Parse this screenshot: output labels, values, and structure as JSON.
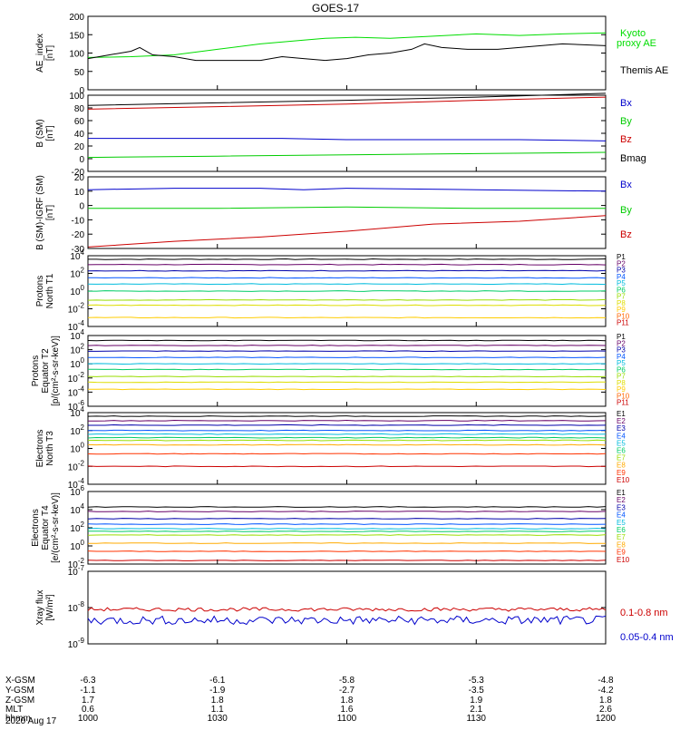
{
  "title": "GOES-17",
  "date_label": "2020 Aug 17",
  "chart_data": [
    {
      "type": "line",
      "panel": "ae",
      "ylabel": [
        "AE_index",
        "[nT]"
      ],
      "ylim": [
        0,
        200
      ],
      "yticks": [
        0,
        50,
        100,
        150,
        200
      ],
      "log": false,
      "series": [
        {
          "name": "Kyoto",
          "name2": "proxy AE",
          "color": "#00dd00",
          "points": [
            [
              0,
              88
            ],
            [
              10,
              90
            ],
            [
              20,
              95
            ],
            [
              30,
              110
            ],
            [
              40,
              125
            ],
            [
              50,
              135
            ],
            [
              55,
              140
            ],
            [
              62,
              143
            ],
            [
              70,
              140
            ],
            [
              80,
              146
            ],
            [
              90,
              152
            ],
            [
              100,
              148
            ],
            [
              110,
              152
            ],
            [
              120,
              155
            ]
          ]
        },
        {
          "name": "Themis AE",
          "color": "#000000",
          "points": [
            [
              0,
              85
            ],
            [
              5,
              95
            ],
            [
              10,
              105
            ],
            [
              12,
              115
            ],
            [
              15,
              95
            ],
            [
              20,
              90
            ],
            [
              25,
              80
            ],
            [
              30,
              80
            ],
            [
              35,
              80
            ],
            [
              40,
              80
            ],
            [
              45,
              90
            ],
            [
              50,
              85
            ],
            [
              55,
              80
            ],
            [
              60,
              85
            ],
            [
              65,
              95
            ],
            [
              70,
              100
            ],
            [
              75,
              110
            ],
            [
              78,
              125
            ],
            [
              82,
              115
            ],
            [
              88,
              110
            ],
            [
              95,
              110
            ],
            [
              100,
              115
            ],
            [
              105,
              120
            ],
            [
              110,
              125
            ],
            [
              120,
              120
            ]
          ]
        }
      ],
      "legend": [
        {
          "text": "Kyoto",
          "color": "#00dd00"
        },
        {
          "text": "proxy AE",
          "color": "#00dd00"
        },
        {
          "text": "Themis AE",
          "color": "#000000"
        }
      ]
    },
    {
      "type": "line",
      "panel": "b_sm",
      "ylabel": [
        "B (SM)",
        "[nT]"
      ],
      "ylim": [
        -20,
        100
      ],
      "yticks": [
        -20,
        0,
        20,
        40,
        60,
        80,
        100
      ],
      "log": false,
      "series": [
        {
          "name": "Bx",
          "color": "#0000cc",
          "points": [
            [
              0,
              32
            ],
            [
              45,
              32
            ],
            [
              60,
              30
            ],
            [
              100,
              30
            ],
            [
              120,
              28
            ]
          ]
        },
        {
          "name": "By",
          "color": "#00cc00",
          "points": [
            [
              0,
              2
            ],
            [
              30,
              4
            ],
            [
              60,
              6
            ],
            [
              90,
              8
            ],
            [
              120,
              10
            ]
          ]
        },
        {
          "name": "Bz",
          "color": "#cc0000",
          "points": [
            [
              0,
              78
            ],
            [
              30,
              82
            ],
            [
              60,
              86
            ],
            [
              90,
              92
            ],
            [
              120,
              97
            ]
          ]
        },
        {
          "name": "Bmag",
          "color": "#000000",
          "points": [
            [
              0,
              84
            ],
            [
              30,
              88
            ],
            [
              60,
              92
            ],
            [
              90,
              97
            ],
            [
              120,
              103
            ]
          ]
        }
      ],
      "legend": [
        {
          "text": "Bx",
          "color": "#0000cc"
        },
        {
          "text": "By",
          "color": "#00cc00"
        },
        {
          "text": "Bz",
          "color": "#cc0000"
        },
        {
          "text": "Bmag",
          "color": "#000000"
        }
      ]
    },
    {
      "type": "line",
      "panel": "b_igrf",
      "ylabel": [
        "B (SM)-IGRF (SM)",
        "[nT]"
      ],
      "ylim": [
        -30,
        20
      ],
      "yticks": [
        -30,
        -20,
        -10,
        0,
        10,
        20
      ],
      "log": false,
      "series": [
        {
          "name": "Bx",
          "color": "#0000cc",
          "points": [
            [
              0,
              11
            ],
            [
              20,
              12
            ],
            [
              40,
              12
            ],
            [
              50,
              11
            ],
            [
              60,
              12
            ],
            [
              90,
              11
            ],
            [
              120,
              10
            ]
          ]
        },
        {
          "name": "By",
          "color": "#00cc00",
          "points": [
            [
              0,
              -2
            ],
            [
              30,
              -2
            ],
            [
              60,
              -1
            ],
            [
              90,
              -2
            ],
            [
              120,
              -2
            ]
          ]
        },
        {
          "name": "Bz",
          "color": "#cc0000",
          "points": [
            [
              0,
              -29
            ],
            [
              20,
              -25
            ],
            [
              40,
              -22
            ],
            [
              60,
              -18
            ],
            [
              80,
              -13
            ],
            [
              100,
              -11
            ],
            [
              120,
              -7
            ]
          ]
        }
      ],
      "legend": [
        {
          "text": "Bx",
          "color": "#0000cc"
        },
        {
          "text": "By",
          "color": "#00cc00"
        },
        {
          "text": "Bz",
          "color": "#cc0000"
        }
      ]
    },
    {
      "type": "line",
      "panel": "protons_t1",
      "ylabel": [
        "Protons",
        "North T1"
      ],
      "log": true,
      "ylim_exp": [
        -4,
        4
      ],
      "yticks_exp": [
        -4,
        -2,
        0,
        2,
        4
      ],
      "series": [
        {
          "name": "P1",
          "color": "#000000",
          "levels": [
            3.6
          ]
        },
        {
          "name": "P2",
          "color": "#660066",
          "levels": [
            3.0
          ]
        },
        {
          "name": "P3",
          "color": "#0000aa",
          "levels": [
            2.3
          ]
        },
        {
          "name": "P4",
          "color": "#0055ff",
          "levels": [
            1.5
          ]
        },
        {
          "name": "P5",
          "color": "#00bbdd",
          "levels": [
            0.8
          ]
        },
        {
          "name": "P6",
          "color": "#00cc66",
          "levels": [
            0.0
          ]
        },
        {
          "name": "P7",
          "color": "#99dd00",
          "levels": [
            -1.0
          ]
        },
        {
          "name": "P8",
          "color": "#dddd00",
          "levels": [
            -1.6
          ]
        },
        {
          "name": "P9",
          "color": "#ffcc00",
          "levels": [
            -3.0
          ]
        },
        {
          "name": "P10",
          "color": "#ff6600",
          "levels": []
        },
        {
          "name": "P11",
          "color": "#cc0000",
          "levels": []
        }
      ]
    },
    {
      "type": "line",
      "panel": "protons_t2",
      "ylabel": [
        "Protons",
        "Equator T2",
        "[p/(cm²-s-sr-keV)]"
      ],
      "log": true,
      "ylim_exp": [
        -6,
        4
      ],
      "yticks_exp": [
        -6,
        -4,
        -2,
        0,
        2,
        4
      ],
      "series": [
        {
          "name": "P1",
          "color": "#000000",
          "levels": [
            3.3
          ]
        },
        {
          "name": "P2",
          "color": "#660066",
          "levels": [
            2.6
          ]
        },
        {
          "name": "P3",
          "color": "#0000aa",
          "levels": [
            1.8
          ]
        },
        {
          "name": "P4",
          "color": "#0055ff",
          "levels": [
            0.9
          ]
        },
        {
          "name": "P5",
          "color": "#00bbdd",
          "levels": [
            0.0
          ]
        },
        {
          "name": "P6",
          "color": "#00cc66",
          "levels": [
            -0.8
          ]
        },
        {
          "name": "P7",
          "color": "#99dd00",
          "levels": [
            -1.8
          ]
        },
        {
          "name": "P8",
          "color": "#dddd00",
          "levels": [
            -2.6
          ]
        },
        {
          "name": "P9",
          "color": "#ffcc00",
          "levels": [
            -3.6
          ]
        },
        {
          "name": "P10",
          "color": "#ff6600",
          "levels": []
        },
        {
          "name": "P11",
          "color": "#cc0000",
          "levels": []
        }
      ]
    },
    {
      "type": "line",
      "panel": "electrons_t3",
      "ylabel": [
        "Electrons",
        "North T3"
      ],
      "log": true,
      "ylim_exp": [
        -4,
        4
      ],
      "yticks_exp": [
        -4,
        -2,
        0,
        2,
        4
      ],
      "series": [
        {
          "name": "E1",
          "color": "#000000",
          "levels": [
            3.6
          ]
        },
        {
          "name": "E2",
          "color": "#660066",
          "levels": [
            3.1
          ]
        },
        {
          "name": "E3",
          "color": "#0000aa",
          "levels": [
            2.6
          ]
        },
        {
          "name": "E4",
          "color": "#0055ff",
          "levels": [
            2.0
          ]
        },
        {
          "name": "E5",
          "color": "#00bbdd",
          "levels": [
            1.6
          ]
        },
        {
          "name": "E6",
          "color": "#00cc66",
          "levels": [
            1.2
          ]
        },
        {
          "name": "E7",
          "color": "#99dd00",
          "levels": [
            0.9
          ]
        },
        {
          "name": "E8",
          "color": "#ffaa00",
          "levels": [
            0.4
          ]
        },
        {
          "name": "E9",
          "color": "#ff3300",
          "levels": [
            -0.6
          ]
        },
        {
          "name": "E10",
          "color": "#cc0000",
          "levels": [
            -2.0
          ]
        }
      ]
    },
    {
      "type": "line",
      "panel": "electrons_t4",
      "ylabel": [
        "Electrons",
        "Equator T4",
        "[e/(cm²-s-sr-keV)]"
      ],
      "log": true,
      "ylim_exp": [
        -2,
        6
      ],
      "yticks_exp": [
        -2,
        0,
        2,
        4,
        6
      ],
      "series": [
        {
          "name": "E1",
          "color": "#000000",
          "levels": [
            4.3
          ]
        },
        {
          "name": "E2",
          "color": "#660066",
          "levels": [
            3.8
          ]
        },
        {
          "name": "E3",
          "color": "#0000aa",
          "levels": [
            3.0
          ]
        },
        {
          "name": "E4",
          "color": "#0055ff",
          "levels": [
            2.4
          ]
        },
        {
          "name": "E5",
          "color": "#00bbdd",
          "levels": [
            1.9
          ]
        },
        {
          "name": "E6",
          "color": "#00cc66",
          "levels": [
            1.6
          ]
        },
        {
          "name": "E7",
          "color": "#99dd00",
          "levels": [
            1.2
          ]
        },
        {
          "name": "E8",
          "color": "#ffaa00",
          "levels": [
            0.3
          ]
        },
        {
          "name": "E9",
          "color": "#ff3300",
          "levels": [
            -0.6
          ]
        },
        {
          "name": "E10",
          "color": "#cc0000",
          "levels": [
            -1.6
          ]
        }
      ]
    },
    {
      "type": "line",
      "panel": "xray",
      "ylabel": [
        "Xray flux",
        "[W/m²]"
      ],
      "log": true,
      "ylim_exp": [
        -9,
        -7
      ],
      "yticks_exp": [
        -9,
        -8,
        -7
      ],
      "series": [
        {
          "name": "0.1-0.8 nm",
          "color": "#cc0000",
          "level": -8.05,
          "jitter": 0.05
        },
        {
          "name": "0.05-0.4 nm",
          "color": "#0000cc",
          "level": -8.35,
          "jitter": 0.12
        }
      ],
      "legend": [
        {
          "text": "0.1-0.8 nm",
          "color": "#cc0000"
        },
        {
          "text": "0.05-0.4 nm",
          "color": "#0000cc"
        }
      ]
    }
  ],
  "xaxis": {
    "range_minutes": [
      0,
      120
    ],
    "tick_minutes": [
      0,
      30,
      60,
      90,
      120
    ],
    "rows": [
      {
        "label": "X-GSM",
        "values": [
          "-6.3",
          "-6.1",
          "-5.8",
          "-5.3",
          "-4.8"
        ]
      },
      {
        "label": "Y-GSM",
        "values": [
          "-1.1",
          "-1.9",
          "-2.7",
          "-3.5",
          "-4.2"
        ]
      },
      {
        "label": "Z-GSM",
        "values": [
          "1.7",
          "1.8",
          "1.8",
          "1.9",
          "1.8"
        ]
      },
      {
        "label": "MLT",
        "values": [
          "0.6",
          "1.1",
          "1.6",
          "2.1",
          "2.6"
        ]
      },
      {
        "label": "hhmm",
        "values": [
          "1000",
          "1030",
          "1100",
          "1130",
          "1200"
        ]
      }
    ]
  }
}
